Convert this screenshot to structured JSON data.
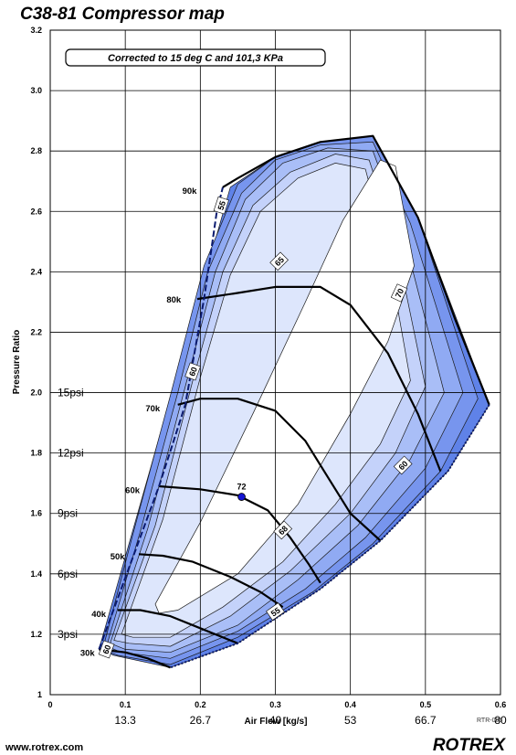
{
  "chart_data": {
    "type": "compressor-map",
    "title": "C38-81 Compressor map",
    "note": "Corrected to 15 deg C and 101,3 KPa",
    "xlabel": "Air Flow [kg/s]",
    "ylabel": "Pressure Ratio",
    "xlim": [
      0,
      0.6
    ],
    "ylim": [
      1,
      3.2
    ],
    "grid": true,
    "x_ticks": [
      "0",
      "0.1",
      "0.2",
      "0.3",
      "0.4",
      "0.5",
      "0.6"
    ],
    "y_ticks": [
      "1",
      "1.2",
      "1.4",
      "1.6",
      "1.8",
      "2.0",
      "2.2",
      "2.4",
      "2.6",
      "2.8",
      "3.0",
      "3.2"
    ],
    "secondary_x_labels": [
      {
        "x": 0.1,
        "text": "13.3"
      },
      {
        "x": 0.2,
        "text": "26.7"
      },
      {
        "x": 0.3,
        "text": "40"
      },
      {
        "x": 0.4,
        "text": "53"
      },
      {
        "x": 0.5,
        "text": "66.7"
      },
      {
        "x": 0.6,
        "text": "80"
      }
    ],
    "psi_labels": [
      {
        "y": 1.2,
        "text": "3psi"
      },
      {
        "y": 1.4,
        "text": "6psi"
      },
      {
        "y": 1.6,
        "text": "9psi"
      },
      {
        "y": 1.8,
        "text": "12psi"
      },
      {
        "y": 2.0,
        "text": "15psi"
      }
    ],
    "efficiency_colors": [
      "#ffffff",
      "#dde6fc",
      "#c4d2fa",
      "#a9bef7",
      "#90aaf3",
      "#7795ee",
      "#5f82e8"
    ],
    "efficiency_bands": [
      {
        "level": 6,
        "points": [
          [
            0.065,
            1.15
          ],
          [
            0.24,
            2.68
          ],
          [
            0.3,
            2.78
          ],
          [
            0.36,
            2.83
          ],
          [
            0.43,
            2.85
          ],
          [
            0.49,
            2.58
          ],
          [
            0.585,
            1.96
          ],
          [
            0.53,
            1.74
          ],
          [
            0.44,
            1.51
          ],
          [
            0.36,
            1.35
          ],
          [
            0.25,
            1.17
          ],
          [
            0.16,
            1.09
          ],
          [
            0.085,
            1.13
          ]
        ]
      },
      {
        "level": 5,
        "points": [
          [
            0.07,
            1.15
          ],
          [
            0.11,
            1.53
          ],
          [
            0.16,
            1.99
          ],
          [
            0.205,
            2.42
          ],
          [
            0.25,
            2.69
          ],
          [
            0.3,
            2.78
          ],
          [
            0.36,
            2.83
          ],
          [
            0.43,
            2.85
          ],
          [
            0.49,
            2.58
          ],
          [
            0.57,
            1.98
          ],
          [
            0.52,
            1.74
          ],
          [
            0.43,
            1.5
          ],
          [
            0.35,
            1.34
          ],
          [
            0.25,
            1.19
          ],
          [
            0.16,
            1.1
          ],
          [
            0.09,
            1.13
          ]
        ]
      },
      {
        "level": 4,
        "points": [
          [
            0.075,
            1.16
          ],
          [
            0.12,
            1.54
          ],
          [
            0.17,
            2.0
          ],
          [
            0.21,
            2.4
          ],
          [
            0.255,
            2.66
          ],
          [
            0.3,
            2.77
          ],
          [
            0.36,
            2.82
          ],
          [
            0.43,
            2.83
          ],
          [
            0.48,
            2.56
          ],
          [
            0.55,
            2.0
          ],
          [
            0.5,
            1.75
          ],
          [
            0.42,
            1.52
          ],
          [
            0.34,
            1.35
          ],
          [
            0.25,
            1.21
          ],
          [
            0.16,
            1.12
          ],
          [
            0.095,
            1.14
          ]
        ]
      },
      {
        "level": 3,
        "points": [
          [
            0.08,
            1.17
          ],
          [
            0.13,
            1.55
          ],
          [
            0.18,
            2.02
          ],
          [
            0.22,
            2.4
          ],
          [
            0.26,
            2.64
          ],
          [
            0.31,
            2.76
          ],
          [
            0.37,
            2.81
          ],
          [
            0.43,
            2.8
          ],
          [
            0.47,
            2.53
          ],
          [
            0.525,
            2.0
          ],
          [
            0.48,
            1.78
          ],
          [
            0.41,
            1.56
          ],
          [
            0.33,
            1.38
          ],
          [
            0.25,
            1.23
          ],
          [
            0.16,
            1.14
          ],
          [
            0.1,
            1.15
          ]
        ]
      },
      {
        "level": 2,
        "points": [
          [
            0.085,
            1.18
          ],
          [
            0.14,
            1.56
          ],
          [
            0.19,
            2.04
          ],
          [
            0.23,
            2.4
          ],
          [
            0.27,
            2.62
          ],
          [
            0.32,
            2.73
          ],
          [
            0.38,
            2.79
          ],
          [
            0.425,
            2.77
          ],
          [
            0.46,
            2.5
          ],
          [
            0.5,
            2.02
          ],
          [
            0.46,
            1.8
          ],
          [
            0.4,
            1.6
          ],
          [
            0.32,
            1.41
          ],
          [
            0.24,
            1.26
          ],
          [
            0.16,
            1.16
          ],
          [
            0.105,
            1.17
          ]
        ]
      },
      {
        "level": 1,
        "points": [
          [
            0.095,
            1.2
          ],
          [
            0.15,
            1.58
          ],
          [
            0.2,
            2.05
          ],
          [
            0.24,
            2.39
          ],
          [
            0.28,
            2.6
          ],
          [
            0.33,
            2.71
          ],
          [
            0.38,
            2.76
          ],
          [
            0.42,
            2.74
          ],
          [
            0.45,
            2.46
          ],
          [
            0.48,
            2.04
          ],
          [
            0.44,
            1.83
          ],
          [
            0.38,
            1.63
          ],
          [
            0.31,
            1.44
          ],
          [
            0.23,
            1.29
          ],
          [
            0.16,
            1.19
          ],
          [
            0.11,
            1.19
          ]
        ]
      },
      {
        "level": 0,
        "points": [
          [
            0.14,
            1.3
          ],
          [
            0.2,
            1.57
          ],
          [
            0.27,
            1.93
          ],
          [
            0.34,
            2.3
          ],
          [
            0.39,
            2.57
          ],
          [
            0.44,
            2.77
          ],
          [
            0.46,
            2.75
          ],
          [
            0.485,
            2.42
          ],
          [
            0.45,
            2.17
          ],
          [
            0.4,
            1.93
          ],
          [
            0.33,
            1.63
          ],
          [
            0.25,
            1.4
          ],
          [
            0.17,
            1.28
          ],
          [
            0.145,
            1.27
          ]
        ]
      }
    ],
    "surge_line": [
      [
        0.065,
        1.15
      ],
      [
        0.145,
        1.69
      ],
      [
        0.18,
        1.96
      ],
      [
        0.205,
        2.31
      ],
      [
        0.215,
        2.48
      ],
      [
        0.222,
        2.6
      ],
      [
        0.23,
        2.68
      ]
    ],
    "outer_boundary": [
      [
        0.23,
        2.68
      ],
      [
        0.25,
        2.71
      ],
      [
        0.3,
        2.78
      ],
      [
        0.36,
        2.83
      ],
      [
        0.43,
        2.85
      ],
      [
        0.49,
        2.58
      ],
      [
        0.54,
        2.24
      ],
      [
        0.585,
        1.96
      ]
    ],
    "choke_line": [
      [
        0.585,
        1.96
      ],
      [
        0.53,
        1.74
      ],
      [
        0.44,
        1.51
      ],
      [
        0.36,
        1.35
      ],
      [
        0.25,
        1.17
      ],
      [
        0.16,
        1.09
      ]
    ],
    "speed_lines": [
      {
        "label": "30k",
        "label_pos": [
          0.04,
          1.14
        ],
        "points": [
          [
            0.065,
            1.15
          ],
          [
            0.1,
            1.14
          ],
          [
            0.13,
            1.12
          ],
          [
            0.16,
            1.09
          ]
        ]
      },
      {
        "label": "40k",
        "label_pos": [
          0.055,
          1.27
        ],
        "points": [
          [
            0.09,
            1.28
          ],
          [
            0.12,
            1.28
          ],
          [
            0.16,
            1.26
          ],
          [
            0.2,
            1.22
          ],
          [
            0.25,
            1.17
          ]
        ]
      },
      {
        "label": "50k",
        "label_pos": [
          0.08,
          1.46
        ],
        "points": [
          [
            0.118,
            1.465
          ],
          [
            0.15,
            1.46
          ],
          [
            0.19,
            1.44
          ],
          [
            0.24,
            1.39
          ],
          [
            0.28,
            1.34
          ],
          [
            0.31,
            1.29
          ]
        ]
      },
      {
        "label": "60k",
        "label_pos": [
          0.1,
          1.68
        ],
        "points": [
          [
            0.145,
            1.69
          ],
          [
            0.2,
            1.68
          ],
          [
            0.25,
            1.66
          ],
          [
            0.29,
            1.61
          ],
          [
            0.32,
            1.52
          ],
          [
            0.345,
            1.43
          ],
          [
            0.36,
            1.37
          ]
        ]
      },
      {
        "label": "70k",
        "label_pos": [
          0.127,
          1.95
        ],
        "points": [
          [
            0.17,
            1.96
          ],
          [
            0.2,
            1.98
          ],
          [
            0.25,
            1.98
          ],
          [
            0.3,
            1.94
          ],
          [
            0.34,
            1.84
          ],
          [
            0.37,
            1.72
          ],
          [
            0.4,
            1.6
          ],
          [
            0.44,
            1.51
          ]
        ]
      },
      {
        "label": "80k",
        "label_pos": [
          0.155,
          2.31
        ],
        "points": [
          [
            0.196,
            2.31
          ],
          [
            0.25,
            2.33
          ],
          [
            0.3,
            2.35
          ],
          [
            0.36,
            2.35
          ],
          [
            0.4,
            2.29
          ],
          [
            0.45,
            2.13
          ],
          [
            0.49,
            1.93
          ],
          [
            0.52,
            1.74
          ]
        ]
      },
      {
        "label": "90k",
        "label_pos": [
          0.176,
          2.67
        ],
        "points": [
          [
            0.23,
            2.68
          ]
        ]
      }
    ],
    "efficiency_labels": [
      {
        "text": "55",
        "x": 0.228,
        "y": 2.62,
        "angle": -72
      },
      {
        "text": "65",
        "x": 0.305,
        "y": 2.435,
        "angle": -45
      },
      {
        "text": "60",
        "x": 0.19,
        "y": 2.07,
        "angle": -70
      },
      {
        "text": "70",
        "x": 0.465,
        "y": 2.33,
        "angle": -65
      },
      {
        "text": "60",
        "x": 0.47,
        "y": 1.76,
        "angle": -45
      },
      {
        "text": "68",
        "x": 0.31,
        "y": 1.545,
        "angle": -45
      },
      {
        "text": "55",
        "x": 0.3,
        "y": 1.275,
        "angle": -35
      },
      {
        "text": "60",
        "x": 0.075,
        "y": 1.15,
        "angle": -70
      }
    ],
    "peak_point": {
      "x": 0.255,
      "y": 1.655,
      "label": "72"
    }
  },
  "footer": {
    "website": "www.rotrex.com",
    "brand": "ROTREX",
    "ref": "RTR-006"
  }
}
